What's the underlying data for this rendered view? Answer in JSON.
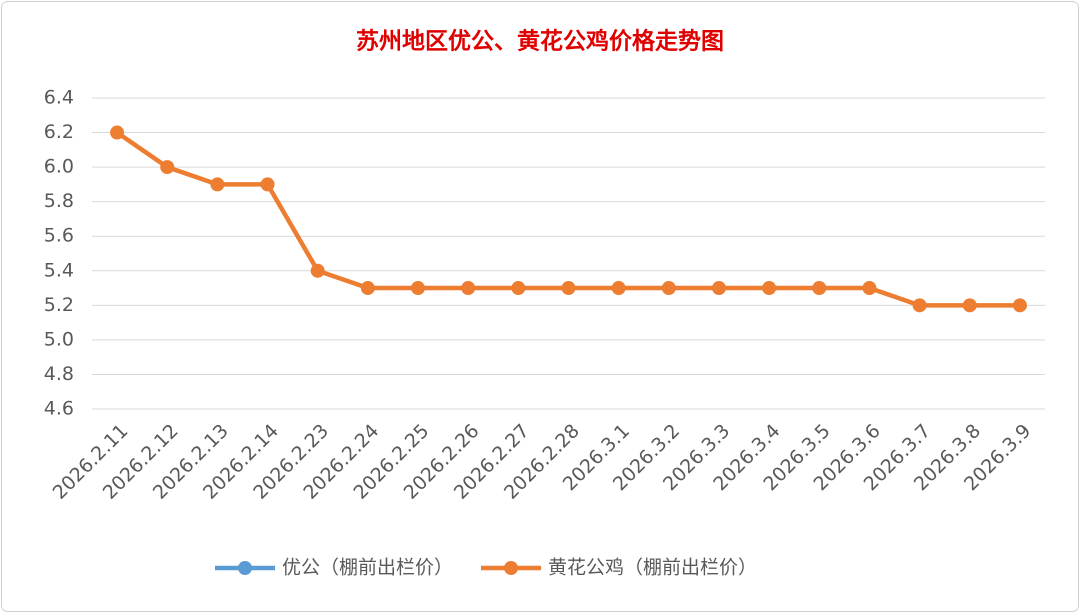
{
  "chart_data": {
    "type": "line",
    "title": "苏州地区优公、黄花公鸡价格走势图",
    "categories": [
      "2026.2.11",
      "2026.2.12",
      "2026.2.13",
      "2026.2.14",
      "2026.2.23",
      "2026.2.24",
      "2026.2.25",
      "2026.2.26",
      "2026.2.27",
      "2026.2.28",
      "2026.3.1",
      "2026.3.2",
      "2026.3.3",
      "2026.3.4",
      "2026.3.5",
      "2026.3.6",
      "2026.3.7",
      "2026.3.8",
      "2026.3.9"
    ],
    "series": [
      {
        "name": "优公（棚前出栏价）",
        "color": "#5b9bd5",
        "values": [
          null,
          null,
          null,
          null,
          null,
          null,
          null,
          null,
          null,
          null,
          null,
          null,
          null,
          null,
          null,
          null,
          null,
          null,
          null
        ]
      },
      {
        "name": "黄花公鸡（棚前出栏价）",
        "color": "#ed7d31",
        "values": [
          6.2,
          6.0,
          5.9,
          5.9,
          5.4,
          5.3,
          5.3,
          5.3,
          5.3,
          5.3,
          5.3,
          5.3,
          5.3,
          5.3,
          5.3,
          5.3,
          5.2,
          5.2,
          5.2
        ]
      }
    ],
    "ylim": [
      4.6,
      6.4
    ],
    "yticks": [
      4.6,
      4.8,
      {
        "value": 5,
        "label": "5.0"
      },
      5.2,
      5.4,
      5.6,
      5.8,
      {
        "value": 6,
        "label": "6.0"
      },
      6.2,
      6.4
    ],
    "grid": true,
    "legend": "bottom"
  }
}
